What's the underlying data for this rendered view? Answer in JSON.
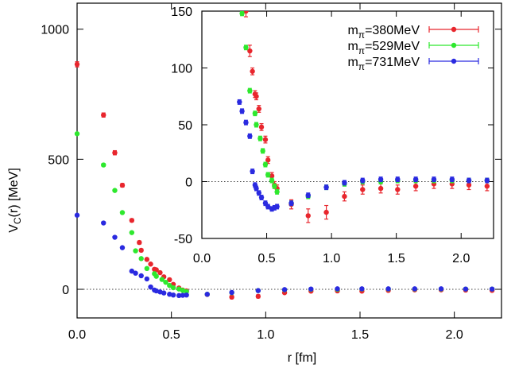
{
  "chart_data": {
    "type": "scatter",
    "xlabel": "r [fm]",
    "ylabel": "V_C(r) [MeV]",
    "xlim": [
      0,
      2.25
    ],
    "ylim": [
      -110,
      1100
    ],
    "x_ticks": [
      {
        "value": 0.0,
        "label": "0.0"
      },
      {
        "value": 0.5,
        "label": "0.5"
      },
      {
        "value": 1.0,
        "label": "1.0"
      },
      {
        "value": 1.5,
        "label": "1.5"
      },
      {
        "value": 2.0,
        "label": "2.0"
      }
    ],
    "y_ticks": [
      {
        "value": 0,
        "label": "0"
      },
      {
        "value": 500,
        "label": "500"
      },
      {
        "value": 1000,
        "label": "1000"
      }
    ],
    "zero_line": true,
    "legend_position": "top-right (inside inset)",
    "series": [
      {
        "name_main": "m",
        "name_sub": "π",
        "name_suffix": "=380MeV",
        "color": "#e8262d",
        "points": [
          {
            "x": 0.0,
            "y": 865,
            "err": 10
          },
          {
            "x": 0.14,
            "y": 670,
            "err": 8
          },
          {
            "x": 0.2,
            "y": 525,
            "err": 8
          },
          {
            "x": 0.24,
            "y": 400,
            "err": 7
          },
          {
            "x": 0.29,
            "y": 265,
            "err": 6
          },
          {
            "x": 0.33,
            "y": 180,
            "err": 6
          },
          {
            "x": 0.34,
            "y": 150,
            "err": 5
          },
          {
            "x": 0.37,
            "y": 115,
            "err": 5
          },
          {
            "x": 0.39,
            "y": 97,
            "err": 3
          },
          {
            "x": 0.41,
            "y": 77,
            "err": 3
          },
          {
            "x": 0.42,
            "y": 75,
            "err": 3
          },
          {
            "x": 0.44,
            "y": 64,
            "err": 3
          },
          {
            "x": 0.46,
            "y": 48,
            "err": 3
          },
          {
            "x": 0.49,
            "y": 37,
            "err": 3
          },
          {
            "x": 0.51,
            "y": 19,
            "err": 3
          },
          {
            "x": 0.54,
            "y": 5,
            "err": 3
          },
          {
            "x": 0.56,
            "y": -3,
            "err": 3
          },
          {
            "x": 0.58,
            "y": -6,
            "err": 3
          },
          {
            "x": 0.69,
            "y": -20,
            "err": 4
          },
          {
            "x": 0.82,
            "y": -30,
            "err": 6
          },
          {
            "x": 0.96,
            "y": -27,
            "err": 6
          },
          {
            "x": 1.1,
            "y": -13,
            "err": 4
          },
          {
            "x": 1.24,
            "y": -7,
            "err": 4
          },
          {
            "x": 1.38,
            "y": -6,
            "err": 4
          },
          {
            "x": 1.51,
            "y": -7,
            "err": 4
          },
          {
            "x": 1.65,
            "y": -4,
            "err": 4
          },
          {
            "x": 1.79,
            "y": -2,
            "err": 4
          },
          {
            "x": 1.93,
            "y": -2,
            "err": 4
          },
          {
            "x": 2.06,
            "y": -3,
            "err": 4
          },
          {
            "x": 2.2,
            "y": -4,
            "err": 4
          }
        ]
      },
      {
        "name_main": "m",
        "name_sub": "π",
        "name_suffix": "=529MeV",
        "color": "#2ee82e",
        "points": [
          {
            "x": 0.0,
            "y": 598,
            "err": 5
          },
          {
            "x": 0.14,
            "y": 478,
            "err": 5
          },
          {
            "x": 0.2,
            "y": 380,
            "err": 4
          },
          {
            "x": 0.24,
            "y": 295,
            "err": 4
          },
          {
            "x": 0.29,
            "y": 218,
            "err": 3
          },
          {
            "x": 0.31,
            "y": 148,
            "err": 2
          },
          {
            "x": 0.34,
            "y": 118,
            "err": 2
          },
          {
            "x": 0.37,
            "y": 80,
            "err": 2
          },
          {
            "x": 0.41,
            "y": 60,
            "err": 2
          },
          {
            "x": 0.42,
            "y": 50,
            "err": 2
          },
          {
            "x": 0.45,
            "y": 38,
            "err": 2
          },
          {
            "x": 0.47,
            "y": 27,
            "err": 2
          },
          {
            "x": 0.49,
            "y": 15,
            "err": 2
          },
          {
            "x": 0.51,
            "y": 6,
            "err": 2
          },
          {
            "x": 0.54,
            "y": 1,
            "err": 2
          },
          {
            "x": 0.56,
            "y": -4,
            "err": 2
          },
          {
            "x": 0.58,
            "y": -9,
            "err": 2
          },
          {
            "x": 0.69,
            "y": -19,
            "err": 2
          },
          {
            "x": 0.82,
            "y": -13,
            "err": 2
          },
          {
            "x": 0.96,
            "y": -5,
            "err": 2
          },
          {
            "x": 1.1,
            "y": -2,
            "err": 2
          },
          {
            "x": 1.24,
            "y": 0,
            "err": 2
          },
          {
            "x": 1.38,
            "y": 0,
            "err": 2
          },
          {
            "x": 1.51,
            "y": 1,
            "err": 2
          },
          {
            "x": 1.65,
            "y": 1,
            "err": 2
          },
          {
            "x": 1.79,
            "y": 1,
            "err": 2
          },
          {
            "x": 1.93,
            "y": 1,
            "err": 2
          },
          {
            "x": 2.06,
            "y": 1,
            "err": 2
          },
          {
            "x": 2.2,
            "y": 1,
            "err": 2
          }
        ]
      },
      {
        "name_main": "m",
        "name_sub": "π",
        "name_suffix": "=731MeV",
        "color": "#2a2ae0",
        "points": [
          {
            "x": 0.0,
            "y": 285,
            "err": 4
          },
          {
            "x": 0.14,
            "y": 255,
            "err": 4
          },
          {
            "x": 0.2,
            "y": 200,
            "err": 3
          },
          {
            "x": 0.24,
            "y": 160,
            "err": 3
          },
          {
            "x": 0.29,
            "y": 70,
            "err": 2
          },
          {
            "x": 0.31,
            "y": 62,
            "err": 2
          },
          {
            "x": 0.34,
            "y": 52,
            "err": 2
          },
          {
            "x": 0.37,
            "y": 40,
            "err": 2
          },
          {
            "x": 0.39,
            "y": 9,
            "err": 2
          },
          {
            "x": 0.41,
            "y": -3,
            "err": 2
          },
          {
            "x": 0.42,
            "y": -6,
            "err": 2
          },
          {
            "x": 0.44,
            "y": -10,
            "err": 2
          },
          {
            "x": 0.46,
            "y": -14,
            "err": 2
          },
          {
            "x": 0.49,
            "y": -19,
            "err": 2
          },
          {
            "x": 0.51,
            "y": -22,
            "err": 2
          },
          {
            "x": 0.54,
            "y": -24,
            "err": 2
          },
          {
            "x": 0.56,
            "y": -23,
            "err": 2
          },
          {
            "x": 0.58,
            "y": -22,
            "err": 2
          },
          {
            "x": 0.69,
            "y": -19,
            "err": 2
          },
          {
            "x": 0.82,
            "y": -12,
            "err": 2
          },
          {
            "x": 0.96,
            "y": -5,
            "err": 2
          },
          {
            "x": 1.1,
            "y": -1,
            "err": 2
          },
          {
            "x": 1.24,
            "y": 1,
            "err": 2
          },
          {
            "x": 1.38,
            "y": 2,
            "err": 2
          },
          {
            "x": 1.51,
            "y": 2,
            "err": 2
          },
          {
            "x": 1.65,
            "y": 2,
            "err": 2
          },
          {
            "x": 1.79,
            "y": 2,
            "err": 2
          },
          {
            "x": 1.93,
            "y": 2,
            "err": 2
          },
          {
            "x": 2.06,
            "y": 1,
            "err": 2
          },
          {
            "x": 2.2,
            "y": 1,
            "err": 2
          }
        ]
      }
    ],
    "inset": {
      "xlim": [
        0,
        2.25
      ],
      "ylim": [
        -50,
        150
      ],
      "x_ticks": [
        {
          "value": 0.0,
          "label": "0.0"
        },
        {
          "value": 0.5,
          "label": "0.5"
        },
        {
          "value": 1.0,
          "label": "1.0"
        },
        {
          "value": 1.5,
          "label": "1.5"
        },
        {
          "value": 2.0,
          "label": "2.0"
        }
      ],
      "y_ticks": [
        {
          "value": -50,
          "label": "-50"
        },
        {
          "value": 0,
          "label": "0"
        },
        {
          "value": 50,
          "label": "50"
        },
        {
          "value": 100,
          "label": "100"
        },
        {
          "value": 150,
          "label": "150"
        }
      ],
      "zero_line": true
    }
  }
}
